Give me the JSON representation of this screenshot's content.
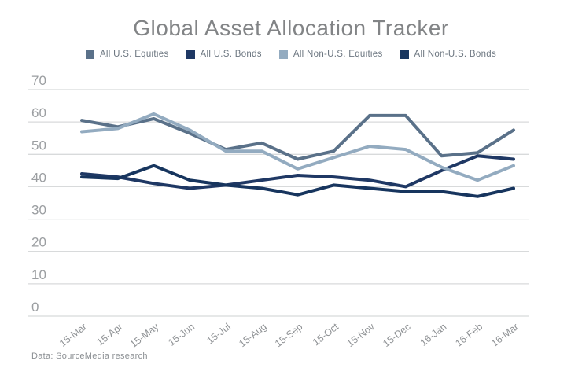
{
  "title": "Global Asset Allocation Tracker",
  "footer": "Data: SourceMedia research",
  "colors": {
    "title_text": "#828486",
    "axis_text": "#9b9ea1",
    "gridline": "#d8dadb",
    "legend_text": "#6d7781",
    "background": "#ffffff"
  },
  "chart_data": {
    "type": "line",
    "title": "Global Asset Allocation Tracker",
    "xlabel": "",
    "ylabel": "",
    "ylim": [
      0,
      70
    ],
    "yticks": [
      0,
      10,
      20,
      30,
      40,
      50,
      60,
      70
    ],
    "grid": "horizontal",
    "legend_position": "top",
    "categories": [
      "15-Mar",
      "15-Apr",
      "15-May",
      "15-Jun",
      "15-Jul",
      "15-Aug",
      "15-Sep",
      "15-Oct",
      "15-Nov",
      "15-Dec",
      "16-Jan",
      "16-Feb",
      "16-Mar"
    ],
    "series": [
      {
        "name": "All U.S. Equities",
        "color": "#5a7189",
        "values": [
          60.5,
          58.5,
          61,
          56.5,
          51.5,
          53.5,
          48.5,
          51,
          62,
          62,
          49.5,
          50.5,
          57.5
        ]
      },
      {
        "name": "All U.S. Bonds",
        "color": "#1f3864",
        "values": [
          44,
          43,
          41,
          39.5,
          40.5,
          42,
          43.5,
          43,
          42,
          40,
          45,
          49.5,
          48.5
        ]
      },
      {
        "name": "All Non-U.S. Equities",
        "color": "#93abc0",
        "values": [
          57,
          58,
          62.5,
          57.5,
          51,
          51,
          45.5,
          49,
          52.5,
          51.5,
          46,
          42,
          46.5
        ]
      },
      {
        "name": "All Non-U.S. Bonds",
        "color": "#17355e",
        "values": [
          43,
          42.5,
          46.5,
          42,
          40.5,
          39.5,
          37.5,
          40.5,
          39.5,
          38.5,
          38.5,
          37,
          39.5
        ]
      }
    ]
  }
}
